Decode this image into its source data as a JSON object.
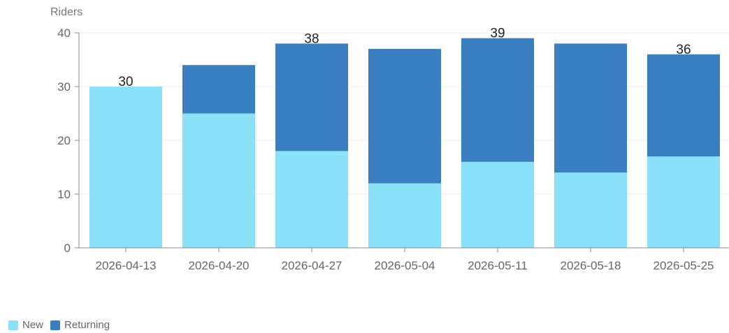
{
  "chart_data": {
    "type": "bar",
    "stacked": true,
    "ylabel": "Riders",
    "xlabel": "",
    "ylim": [
      0,
      40
    ],
    "yticks": [
      0,
      10,
      20,
      30,
      40
    ],
    "grid": true,
    "legend_position": "bottom-left",
    "categories": [
      "2026-04-13",
      "2026-04-20",
      "2026-04-27",
      "2026-05-04",
      "2026-05-11",
      "2026-05-18",
      "2026-05-25"
    ],
    "series": [
      {
        "name": "New",
        "color": "#8ae1f8",
        "values": [
          30,
          25,
          18,
          12,
          16,
          14,
          17
        ]
      },
      {
        "name": "Returning",
        "color": "#3a7fc1",
        "values": [
          0,
          9,
          20,
          25,
          23,
          24,
          19
        ]
      }
    ],
    "total_labels": [
      "30",
      "",
      "38",
      "",
      "39",
      "",
      "36"
    ]
  }
}
